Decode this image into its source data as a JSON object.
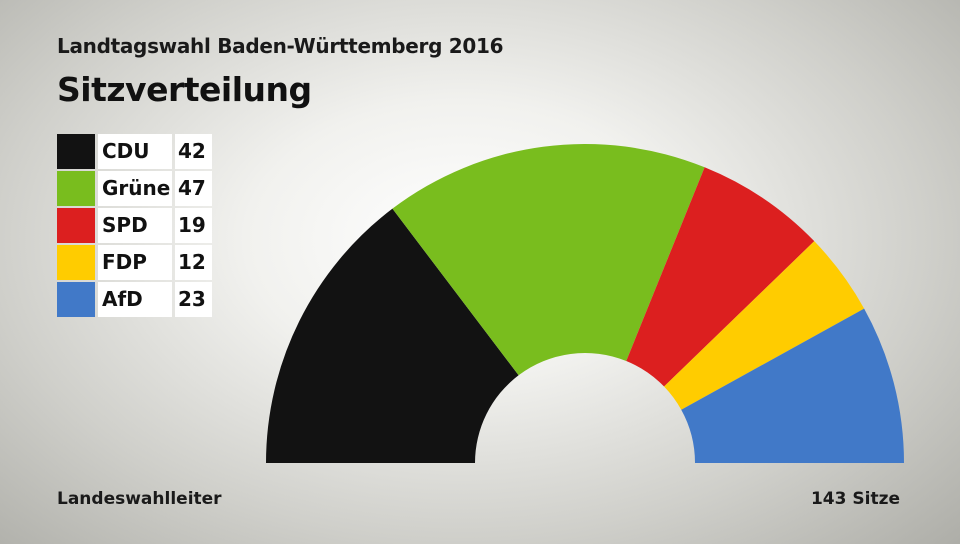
{
  "header": {
    "subtitle": "Landtagswahl Baden-Württemberg 2016",
    "title": "Sitzverteilung"
  },
  "footer": {
    "source": "Landeswahlleiter",
    "total": "143 Sitze"
  },
  "chart_data": {
    "type": "pie",
    "variant": "semicircle-hemicycle",
    "title": "Sitzverteilung",
    "total_seats": 143,
    "legend_placement": "left",
    "series": [
      {
        "name": "CDU",
        "value": 42,
        "label": "42",
        "color": "#121212"
      },
      {
        "name": "Grüne",
        "value": 47,
        "label": "47",
        "color": "#79bd1e"
      },
      {
        "name": "SPD",
        "value": 19,
        "label": "19",
        "color": "#dc1f1f"
      },
      {
        "name": "FDP",
        "value": 12,
        "label": "12",
        "color": "#ffcc00"
      },
      {
        "name": "AfD",
        "value": 23,
        "label": "23",
        "color": "#4179c8"
      }
    ]
  }
}
